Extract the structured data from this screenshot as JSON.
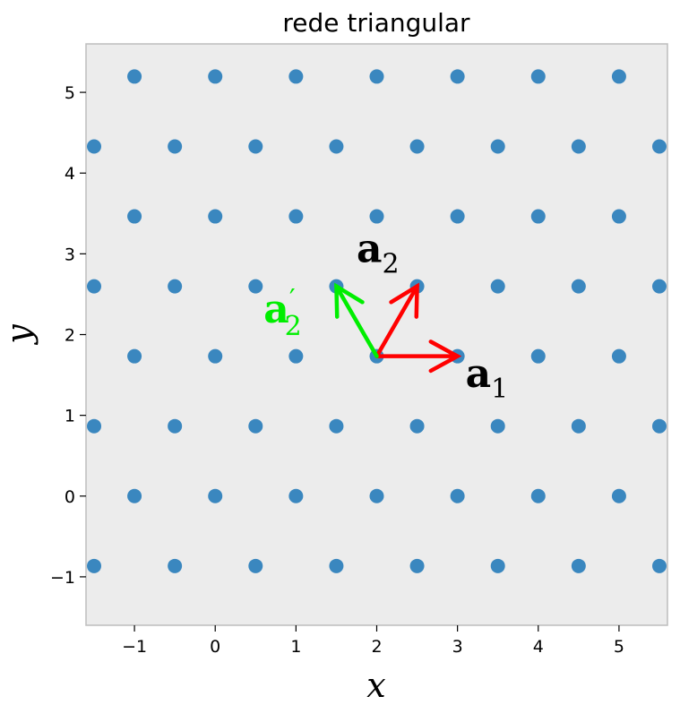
{
  "chart_data": {
    "type": "scatter",
    "title": "rede triangular",
    "xlabel": "x",
    "ylabel": "y",
    "xlim": [
      -1.6,
      5.6
    ],
    "ylim": [
      -1.6,
      5.6
    ],
    "xticks": [
      -1,
      0,
      1,
      2,
      3,
      4,
      5
    ],
    "yticks": [
      -1,
      0,
      1,
      2,
      3,
      4,
      5
    ],
    "xtick_labels": [
      "−1",
      "0",
      "1",
      "2",
      "3",
      "4",
      "5"
    ],
    "ytick_labels": [
      "−1",
      "0",
      "1",
      "2",
      "3",
      "4",
      "5"
    ],
    "grid": false,
    "background": "#ececec",
    "marker_color": "#3a87bf",
    "points": [
      [
        -1.5,
        -0.866
      ],
      [
        -0.5,
        -0.866
      ],
      [
        0.5,
        -0.866
      ],
      [
        1.5,
        -0.866
      ],
      [
        2.5,
        -0.866
      ],
      [
        3.5,
        -0.866
      ],
      [
        4.5,
        -0.866
      ],
      [
        5.5,
        -0.866
      ],
      [
        -1,
        0
      ],
      [
        0,
        0
      ],
      [
        1,
        0
      ],
      [
        2,
        0
      ],
      [
        3,
        0
      ],
      [
        4,
        0
      ],
      [
        5,
        0
      ],
      [
        -1.5,
        0.866
      ],
      [
        -0.5,
        0.866
      ],
      [
        0.5,
        0.866
      ],
      [
        1.5,
        0.866
      ],
      [
        2.5,
        0.866
      ],
      [
        3.5,
        0.866
      ],
      [
        4.5,
        0.866
      ],
      [
        5.5,
        0.866
      ],
      [
        -1,
        1.732
      ],
      [
        0,
        1.732
      ],
      [
        1,
        1.732
      ],
      [
        2,
        1.732
      ],
      [
        3,
        1.732
      ],
      [
        4,
        1.732
      ],
      [
        5,
        1.732
      ],
      [
        -1.5,
        2.598
      ],
      [
        -0.5,
        2.598
      ],
      [
        0.5,
        2.598
      ],
      [
        1.5,
        2.598
      ],
      [
        2.5,
        2.598
      ],
      [
        3.5,
        2.598
      ],
      [
        4.5,
        2.598
      ],
      [
        5.5,
        2.598
      ],
      [
        -1,
        3.464
      ],
      [
        0,
        3.464
      ],
      [
        1,
        3.464
      ],
      [
        2,
        3.464
      ],
      [
        3,
        3.464
      ],
      [
        4,
        3.464
      ],
      [
        5,
        3.464
      ],
      [
        -1.5,
        4.33
      ],
      [
        -0.5,
        4.33
      ],
      [
        0.5,
        4.33
      ],
      [
        1.5,
        4.33
      ],
      [
        2.5,
        4.33
      ],
      [
        3.5,
        4.33
      ],
      [
        4.5,
        4.33
      ],
      [
        5.5,
        4.33
      ],
      [
        -1,
        5.196
      ],
      [
        0,
        5.196
      ],
      [
        1,
        5.196
      ],
      [
        2,
        5.196
      ],
      [
        3,
        5.196
      ],
      [
        4,
        5.196
      ],
      [
        5,
        5.196
      ]
    ],
    "vectors": [
      {
        "id": "a1",
        "from": [
          2,
          1.732
        ],
        "to": [
          3,
          1.732
        ],
        "color": "#ff0000",
        "label": "a",
        "subscript": "1",
        "prime": ""
      },
      {
        "id": "a2",
        "from": [
          2,
          1.732
        ],
        "to": [
          2.5,
          2.598
        ],
        "color": "#ff0000",
        "label": "a",
        "subscript": "2",
        "prime": ""
      },
      {
        "id": "a2p",
        "from": [
          2,
          1.732
        ],
        "to": [
          1.5,
          2.598
        ],
        "color": "#00ee00",
        "label": "a",
        "subscript": "2",
        "prime": "′"
      }
    ],
    "vector_label_positions": [
      {
        "id": "a1",
        "x": 3.1,
        "y": 1.35
      },
      {
        "id": "a2",
        "x": 1.75,
        "y": 2.9
      },
      {
        "id": "a2p",
        "x": 0.6,
        "y": 2.15
      }
    ]
  }
}
